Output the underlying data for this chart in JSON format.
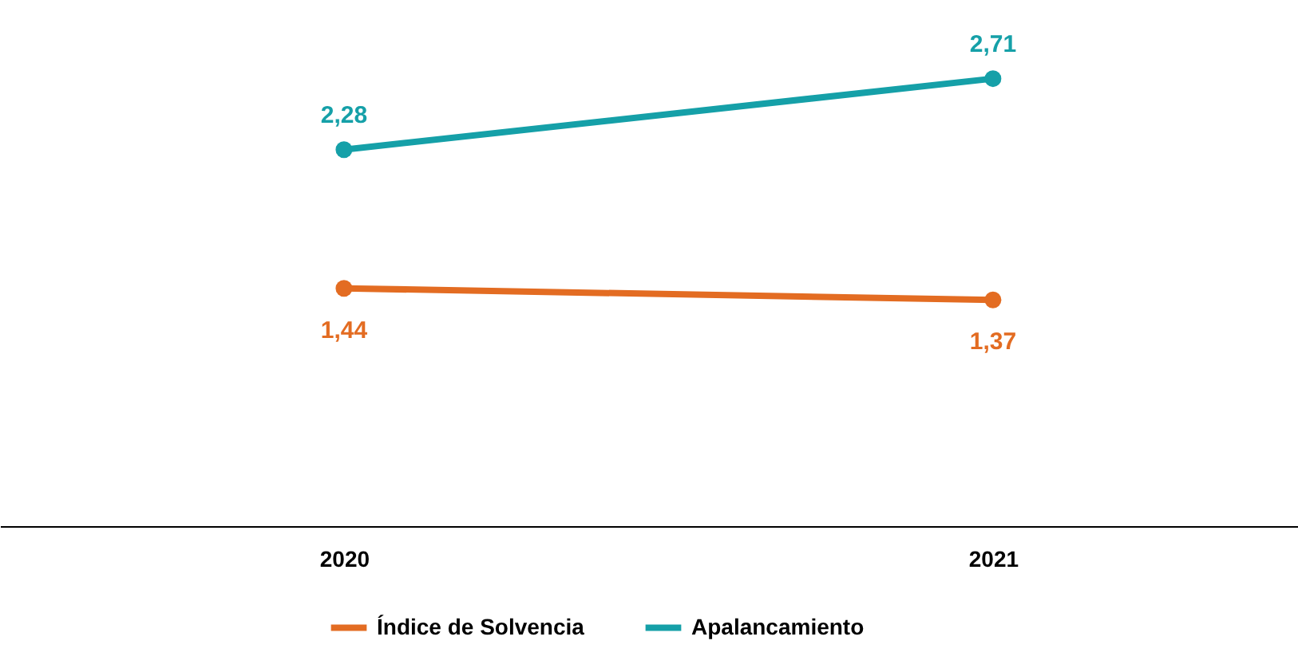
{
  "chart_data": {
    "type": "line",
    "categories": [
      "2020",
      "2021"
    ],
    "series": [
      {
        "name": "Índice de Solvencia",
        "color": "#e36c22",
        "values": [
          1.44,
          1.37
        ],
        "value_labels": [
          "1,44",
          "1,37"
        ]
      },
      {
        "name": "Apalancamiento",
        "color": "#15a0a8",
        "values": [
          2.28,
          2.71
        ],
        "value_labels": [
          "2,28",
          "2,71"
        ]
      }
    ],
    "legend": "bottom",
    "marker": "circle",
    "line_style": "solid",
    "grid": false,
    "tick_labels": "x"
  }
}
